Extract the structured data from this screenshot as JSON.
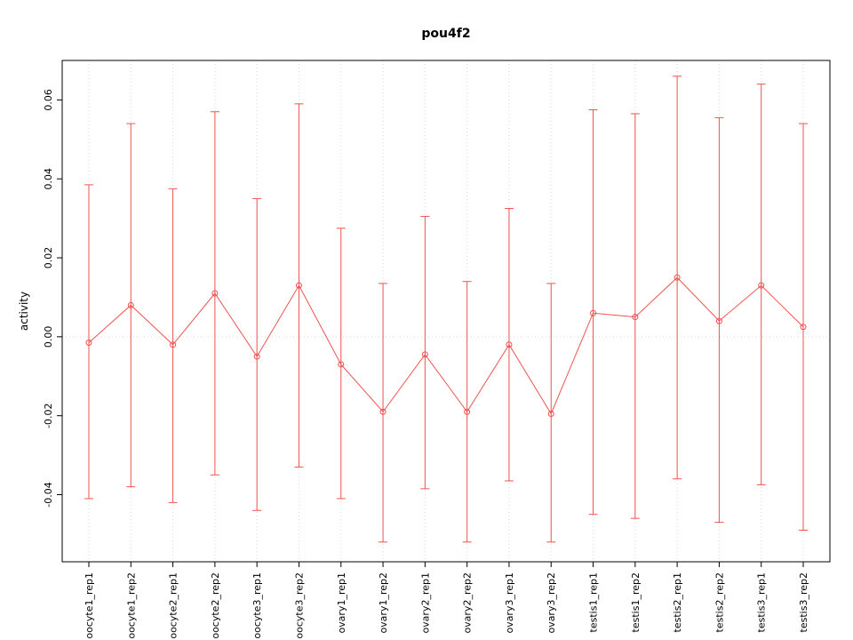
{
  "title": "pou4f2",
  "chart_data": {
    "type": "line",
    "title": "pou4f2",
    "xlabel": "",
    "ylabel": "activity",
    "ylim": [
      -0.057,
      0.07
    ],
    "yticks": [
      -0.04,
      -0.02,
      0.0,
      0.02,
      0.04,
      0.06
    ],
    "grid": "vertical dotted line at each category; horizontal dotted line at y=0",
    "legend": "none",
    "point_style": "open-circle",
    "error_bars": true,
    "colors": {
      "series": "#ef5350",
      "grid": "#d9d9d9",
      "axis": "#000000",
      "background": "#ffffff"
    },
    "categories": [
      "oocyte1_rep1",
      "oocyte1_rep2",
      "oocyte2_rep1",
      "oocyte2_rep2",
      "oocyte3_rep1",
      "oocyte3_rep2",
      "ovary1_rep1",
      "ovary1_rep2",
      "ovary2_rep1",
      "ovary2_rep2",
      "ovary3_rep1",
      "ovary3_rep2",
      "testis1_rep1",
      "testis1_rep2",
      "testis2_rep1",
      "testis2_rep2",
      "testis3_rep1",
      "testis3_rep2"
    ],
    "series": [
      {
        "name": "activity",
        "values": [
          -0.0015,
          0.008,
          -0.002,
          0.011,
          -0.005,
          0.013,
          -0.007,
          -0.019,
          -0.0045,
          -0.019,
          -0.002,
          -0.0195,
          0.006,
          0.005,
          0.015,
          0.004,
          0.013,
          0.0025
        ],
        "upper": [
          0.0385,
          0.054,
          0.0375,
          0.057,
          0.035,
          0.059,
          0.0275,
          0.0135,
          0.0305,
          0.014,
          0.0325,
          0.0135,
          0.0575,
          0.0565,
          0.066,
          0.0555,
          0.064,
          0.054
        ],
        "lower": [
          -0.041,
          -0.038,
          -0.042,
          -0.035,
          -0.044,
          -0.033,
          -0.041,
          -0.052,
          -0.0385,
          -0.052,
          -0.0365,
          -0.052,
          -0.045,
          -0.046,
          -0.036,
          -0.047,
          -0.0375,
          -0.049
        ]
      }
    ]
  }
}
